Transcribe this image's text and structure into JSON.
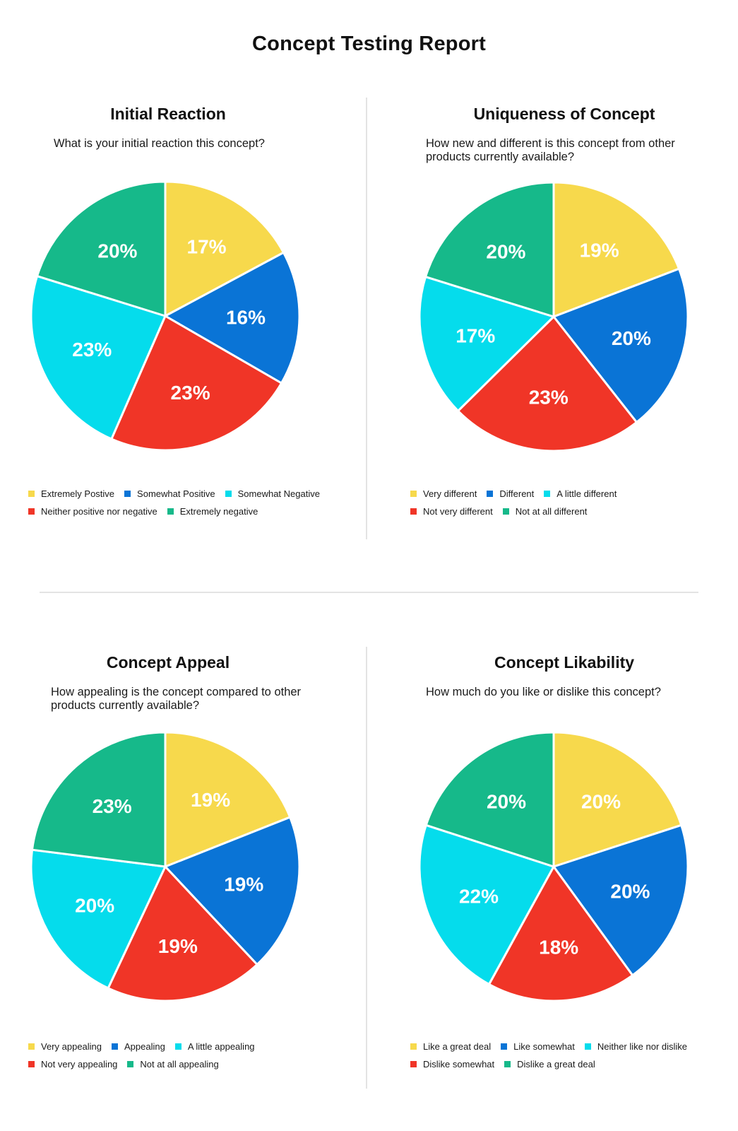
{
  "title": "Concept Testing Report",
  "chart_data": [
    {
      "type": "pie",
      "title": "Initial Reaction",
      "subtitle": "What is your initial reaction this concept?",
      "categories": [
        "Extremely Postive",
        "Somewhat Positive",
        "Neither positive nor negative",
        "Somewhat Negative",
        "Extremely negative"
      ],
      "values": [
        17,
        16,
        23,
        23,
        20
      ],
      "value_labels": [
        "17%",
        "16%",
        "23%",
        "23%",
        "20%"
      ],
      "colors": [
        "#F7D94C",
        "#0A74D6",
        "#F03527",
        "#05DCEC",
        "#16B98A"
      ],
      "legend": [
        [
          "Extremely Postive",
          "Somewhat Positive",
          "Somewhat Negative"
        ],
        [
          "Neither positive nor negative",
          "Extremely negative"
        ]
      ],
      "legend_colors": [
        [
          "#F7D94C",
          "#0A74D6",
          "#05DCEC"
        ],
        [
          "#F03527",
          "#16B98A"
        ]
      ]
    },
    {
      "type": "pie",
      "title": "Uniqueness of Concept",
      "subtitle": "How new and different is this concept from other\nproducts currently available?",
      "categories": [
        "Very different",
        "Different",
        "Not very different",
        "A little different",
        "Not at all different"
      ],
      "values": [
        19,
        20,
        23,
        17,
        20
      ],
      "value_labels": [
        "19%",
        "20%",
        "23%",
        "17%",
        "20%"
      ],
      "colors": [
        "#F7D94C",
        "#0A74D6",
        "#F03527",
        "#05DCEC",
        "#16B98A"
      ],
      "legend": [
        [
          "Very different",
          "Different",
          "A little different"
        ],
        [
          "Not very different",
          "Not at all different"
        ]
      ],
      "legend_colors": [
        [
          "#F7D94C",
          "#0A74D6",
          "#05DCEC"
        ],
        [
          "#F03527",
          "#16B98A"
        ]
      ]
    },
    {
      "type": "pie",
      "title": "Concept Appeal",
      "subtitle": "How appealing is the concept compared to other\nproducts currently available?",
      "categories": [
        "Very appealing",
        "Appealing",
        "Not very appealing",
        "A little appealing",
        "Not at all appealing"
      ],
      "values": [
        19,
        19,
        19,
        20,
        23
      ],
      "value_labels": [
        "19%",
        "19%",
        "19%",
        "20%",
        "23%"
      ],
      "colors": [
        "#F7D94C",
        "#0A74D6",
        "#F03527",
        "#05DCEC",
        "#16B98A"
      ],
      "legend": [
        [
          "Very appealing",
          "Appealing",
          "A little appealing"
        ],
        [
          "Not very appealing",
          "Not at all appealing"
        ]
      ],
      "legend_colors": [
        [
          "#F7D94C",
          "#0A74D6",
          "#05DCEC"
        ],
        [
          "#F03527",
          "#16B98A"
        ]
      ]
    },
    {
      "type": "pie",
      "title": "Concept Likability",
      "subtitle": "How much do you like or dislike this concept?",
      "categories": [
        "Like a great deal",
        "Like somewhat",
        "Dislike somewhat",
        "Neither like nor dislike",
        "Dislike a great deal"
      ],
      "values": [
        20,
        20,
        18,
        22,
        20
      ],
      "value_labels": [
        "20%",
        "20%",
        "18%",
        "22%",
        "20%"
      ],
      "colors": [
        "#F7D94C",
        "#0A74D6",
        "#F03527",
        "#05DCEC",
        "#16B98A"
      ],
      "legend": [
        [
          "Like a great deal",
          "Like somewhat",
          "Neither like nor dislike"
        ],
        [
          "Dislike somewhat",
          "Dislike a great deal"
        ]
      ],
      "legend_colors": [
        [
          "#F7D94C",
          "#0A74D6",
          "#05DCEC"
        ],
        [
          "#F03527",
          "#16B98A"
        ]
      ]
    }
  ]
}
